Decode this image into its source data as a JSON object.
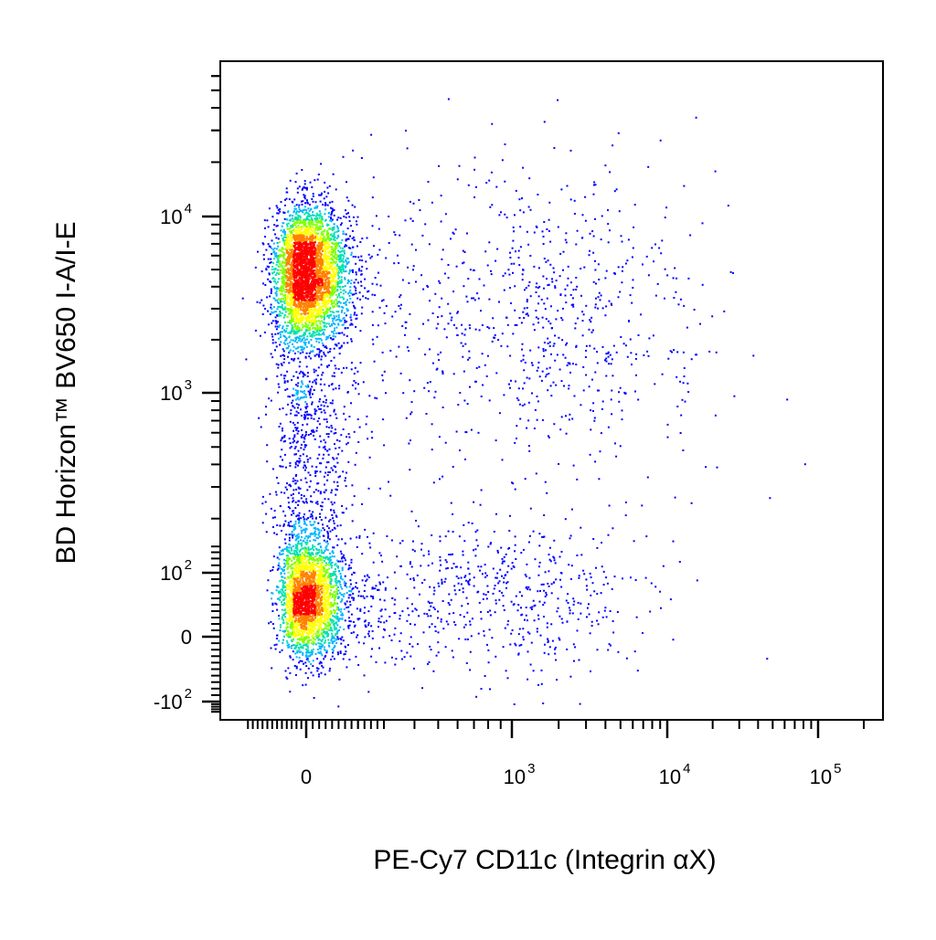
{
  "chart_data": {
    "type": "scatter",
    "style": "pseudocolor density dot plot",
    "xlabel": "PE-Cy7  CD11c (Integrin αX)",
    "ylabel": "BD Horizon™ BV650 I-A/I-E",
    "x_scale": "biexponential",
    "y_scale": "biexponential",
    "xlim": [
      -400,
      200000
    ],
    "ylim": [
      -150,
      70000
    ],
    "x_ticks": [
      {
        "value": 0,
        "label": "0",
        "exp": ""
      },
      {
        "value": 1000,
        "label": "10",
        "exp": "3"
      },
      {
        "value": 10000,
        "label": "10",
        "exp": "4"
      },
      {
        "value": 100000,
        "label": "10",
        "exp": "5"
      }
    ],
    "y_ticks": [
      {
        "value": -100,
        "label": "-10",
        "exp": "2"
      },
      {
        "value": 0,
        "label": "0",
        "exp": ""
      },
      {
        "value": 100,
        "label": "10",
        "exp": "2"
      },
      {
        "value": 1000,
        "label": "10",
        "exp": "3"
      },
      {
        "value": 10000,
        "label": "10",
        "exp": "4"
      }
    ],
    "density_colors": [
      "#0000ff",
      "#00b4ff",
      "#00e0b0",
      "#80ff00",
      "#ffff00",
      "#ff8000",
      "#ff0000"
    ],
    "populations": [
      {
        "x_center": 0,
        "y_center": 5000,
        "x_spread": 80,
        "y_spread": 2600,
        "weight": 0.42
      },
      {
        "x_center": 0,
        "y_center": 60,
        "x_spread": 70,
        "y_spread": 45,
        "weight": 0.3
      },
      {
        "x_center": 0,
        "y_center": 800,
        "x_spread": 90,
        "y_spread": 700,
        "weight": 0.1
      },
      {
        "x_center": 1200,
        "y_center": 2500,
        "x_spread": 1500,
        "y_spread": 2000,
        "weight": 0.1
      },
      {
        "x_center": 600,
        "y_center": 60,
        "x_spread": 700,
        "y_spread": 60,
        "weight": 0.08
      }
    ],
    "grid": false,
    "legend": "none"
  }
}
